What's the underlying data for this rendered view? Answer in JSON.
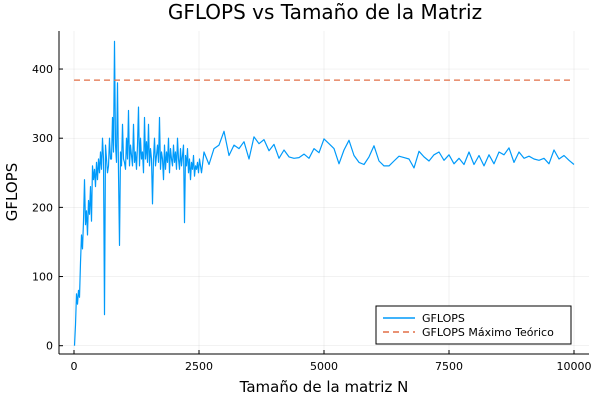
{
  "chart_data": {
    "type": "line",
    "title": "GFLOPS vs Tamaño de la Matriz",
    "xlabel": "Tamaño de la matriz N",
    "ylabel": "GFLOPS",
    "xlim": [
      -300,
      10300
    ],
    "ylim": [
      -12,
      455
    ],
    "xticks": [
      0,
      2500,
      5000,
      7500,
      10000
    ],
    "xtick_labels": [
      "0",
      "2500",
      "5000",
      "7500",
      "10000"
    ],
    "yticks": [
      0,
      100,
      200,
      300,
      400
    ],
    "ytick_labels": [
      "0",
      "100",
      "200",
      "300",
      "400"
    ],
    "grid": true,
    "legend_position": "bottom-right",
    "series": [
      {
        "name": "GFLOPS",
        "color": "#009AFA",
        "style": "solid",
        "x": [
          10,
          30,
          50,
          70,
          90,
          110,
          130,
          150,
          170,
          190,
          210,
          230,
          250,
          270,
          290,
          310,
          330,
          350,
          370,
          390,
          410,
          430,
          450,
          470,
          490,
          510,
          530,
          550,
          570,
          590,
          610,
          630,
          650,
          670,
          690,
          710,
          730,
          750,
          770,
          790,
          810,
          830,
          850,
          870,
          890,
          910,
          930,
          950,
          970,
          990,
          1010,
          1030,
          1050,
          1070,
          1090,
          1110,
          1130,
          1150,
          1170,
          1190,
          1210,
          1230,
          1250,
          1270,
          1290,
          1310,
          1330,
          1350,
          1370,
          1390,
          1410,
          1430,
          1450,
          1470,
          1490,
          1510,
          1530,
          1550,
          1570,
          1590,
          1610,
          1630,
          1650,
          1670,
          1690,
          1710,
          1730,
          1750,
          1770,
          1790,
          1810,
          1830,
          1850,
          1870,
          1890,
          1910,
          1930,
          1950,
          1970,
          1990,
          2010,
          2030,
          2050,
          2070,
          2090,
          2110,
          2130,
          2150,
          2170,
          2190,
          2210,
          2230,
          2250,
          2270,
          2290,
          2310,
          2330,
          2350,
          2370,
          2390,
          2410,
          2430,
          2450,
          2470,
          2490,
          2510,
          2550,
          2600,
          2700,
          2800,
          2900,
          3000,
          3100,
          3200,
          3300,
          3400,
          3500,
          3600,
          3700,
          3800,
          3900,
          4000,
          4100,
          4200,
          4300,
          4400,
          4500,
          4600,
          4700,
          4800,
          4900,
          5000,
          5100,
          5200,
          5300,
          5400,
          5500,
          5600,
          5700,
          5800,
          5900,
          6000,
          6100,
          6200,
          6300,
          6400,
          6500,
          6600,
          6700,
          6800,
          6900,
          7000,
          7100,
          7200,
          7300,
          7400,
          7500,
          7600,
          7700,
          7800,
          7900,
          8000,
          8100,
          8200,
          8300,
          8400,
          8500,
          8600,
          8700,
          8800,
          8900,
          9000,
          9100,
          9200,
          9300,
          9400,
          9500,
          9600,
          9700,
          9800,
          9900,
          10000
        ],
        "values": [
          0,
          30,
          75,
          60,
          80,
          70,
          120,
          160,
          140,
          180,
          240,
          175,
          195,
          160,
          210,
          190,
          230,
          180,
          260,
          240,
          255,
          230,
          265,
          240,
          270,
          250,
          280,
          255,
          300,
          270,
          45,
          290,
          270,
          250,
          260,
          300,
          270,
          270,
          330,
          280,
          440,
          290,
          265,
          380,
          250,
          145,
          280,
          260,
          320,
          270,
          265,
          255,
          300,
          270,
          340,
          260,
          290,
          275,
          260,
          320,
          265,
          280,
          255,
          290,
          345,
          260,
          300,
          270,
          280,
          250,
          330,
          270,
          295,
          265,
          320,
          260,
          285,
          270,
          205,
          270,
          300,
          260,
          275,
          290,
          265,
          330,
          255,
          280,
          270,
          240,
          290,
          255,
          280,
          265,
          300,
          250,
          285,
          270,
          260,
          290,
          265,
          280,
          255,
          300,
          270,
          255,
          285,
          260,
          275,
          290,
          178,
          275,
          260,
          285,
          250,
          270,
          240,
          265,
          255,
          275,
          245,
          260,
          255,
          265,
          250,
          270,
          250,
          280,
          262,
          285,
          290,
          310,
          275,
          290,
          285,
          295,
          270,
          302,
          292,
          298,
          282,
          291,
          271,
          283,
          273,
          271,
          272,
          277,
          271,
          285,
          279,
          299,
          292,
          285,
          263,
          283,
          297,
          275,
          265,
          262,
          273,
          289,
          267,
          260,
          260,
          267,
          274,
          272,
          270,
          257,
          281,
          273,
          267,
          276,
          280,
          268,
          276,
          263,
          271,
          262,
          280,
          262,
          275,
          260,
          276,
          263,
          280,
          276,
          286,
          265,
          280,
          271,
          274,
          270,
          268,
          271,
          263,
          283,
          270,
          275,
          268,
          262
        ]
      },
      {
        "name": "GFLOPS Máximo Teórico",
        "color": "#E26F46",
        "style": "dashed",
        "x": [
          0,
          10000
        ],
        "values": [
          384,
          384
        ]
      }
    ]
  }
}
